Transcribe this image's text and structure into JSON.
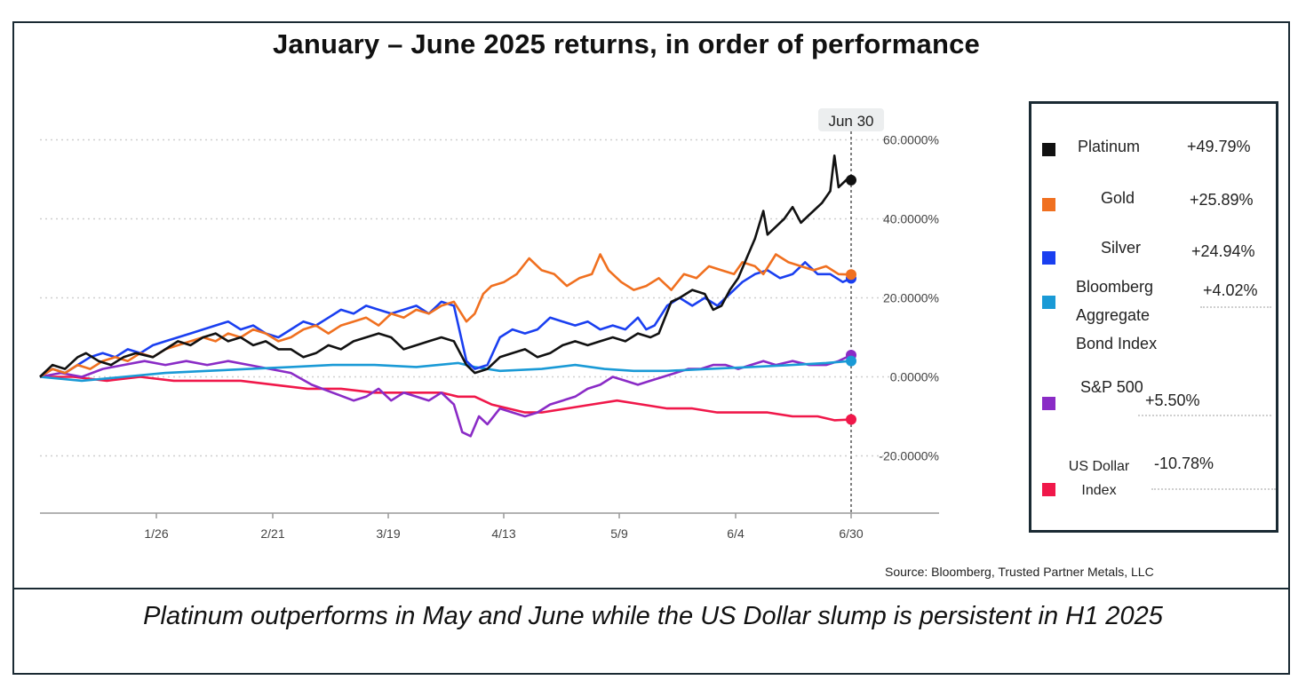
{
  "title": "January – June 2025 returns, in order of performance",
  "source": "Source: Bloomberg, Trusted Partner Metals, LLC",
  "caption": "Platinum outperforms in May and June while the US Dollar slump is persistent in H1 2025",
  "chart_data": {
    "type": "line",
    "title": "January – June 2025 returns, in order of performance",
    "xlabel": "",
    "ylabel": "",
    "x_tick_labels": [
      "1/26",
      "2/21",
      "3/19",
      "4/13",
      "5/9",
      "6/4",
      "6/30"
    ],
    "x_tick_days": [
      25,
      51,
      77,
      102,
      128,
      154,
      180
    ],
    "x_range_days": [
      0,
      180
    ],
    "y_tick_labels": [
      "60.0000%",
      "40.0000%",
      "20.0000%",
      "0.0000%",
      "-20.0000%"
    ],
    "y_ticks": [
      60,
      40,
      20,
      0,
      -20
    ],
    "ylim": [
      -35,
      63
    ],
    "hover_label": "Jun 30",
    "grid": "horizontal dotted",
    "legend_position": "right",
    "series": [
      {
        "name": "Platinum",
        "value_label": "+49.79%",
        "color": "#111111",
        "points": [
          [
            0,
            0
          ],
          [
            3,
            3
          ],
          [
            6,
            2
          ],
          [
            9,
            5
          ],
          [
            11,
            6
          ],
          [
            14,
            4
          ],
          [
            17,
            3
          ],
          [
            20,
            5
          ],
          [
            23,
            6
          ],
          [
            27,
            5
          ],
          [
            30,
            7
          ],
          [
            33,
            9
          ],
          [
            36,
            8
          ],
          [
            39,
            10
          ],
          [
            42,
            11
          ],
          [
            45,
            9
          ],
          [
            48,
            10
          ],
          [
            51,
            8
          ],
          [
            54,
            9
          ],
          [
            57,
            7
          ],
          [
            60,
            7
          ],
          [
            63,
            5
          ],
          [
            66,
            6
          ],
          [
            69,
            8
          ],
          [
            72,
            7
          ],
          [
            75,
            9
          ],
          [
            78,
            10
          ],
          [
            81,
            11
          ],
          [
            84,
            10
          ],
          [
            87,
            7
          ],
          [
            90,
            8
          ],
          [
            93,
            9
          ],
          [
            96,
            10
          ],
          [
            99,
            9
          ],
          [
            102,
            3
          ],
          [
            104,
            1
          ],
          [
            107,
            2
          ],
          [
            110,
            5
          ],
          [
            113,
            6
          ],
          [
            116,
            7
          ],
          [
            119,
            5
          ],
          [
            122,
            6
          ],
          [
            125,
            8
          ],
          [
            128,
            9
          ],
          [
            131,
            8
          ],
          [
            134,
            9
          ],
          [
            137,
            10
          ],
          [
            140,
            9
          ],
          [
            143,
            11
          ],
          [
            146,
            10
          ],
          [
            148,
            11
          ],
          [
            151,
            19
          ],
          [
            153,
            20
          ],
          [
            156,
            22
          ],
          [
            159,
            21
          ],
          [
            161,
            17
          ],
          [
            163,
            18
          ],
          [
            165,
            22
          ],
          [
            167,
            25
          ],
          [
            169,
            30
          ],
          [
            171,
            35
          ],
          [
            173,
            42
          ],
          [
            174,
            36
          ],
          [
            176,
            38
          ],
          [
            178,
            40
          ],
          [
            180,
            43
          ],
          [
            182,
            39
          ],
          [
            184,
            41
          ],
          [
            187,
            44
          ],
          [
            189,
            47
          ],
          [
            190,
            56
          ],
          [
            191,
            48
          ],
          [
            193,
            50
          ],
          [
            194,
            49.79
          ]
        ]
      },
      {
        "name": "Gold",
        "value_label": "+25.89%",
        "color": "#f07020",
        "points": [
          [
            0,
            0
          ],
          [
            3,
            2
          ],
          [
            6,
            1
          ],
          [
            9,
            3
          ],
          [
            12,
            2
          ],
          [
            15,
            4
          ],
          [
            18,
            5
          ],
          [
            21,
            4
          ],
          [
            24,
            6
          ],
          [
            27,
            5
          ],
          [
            30,
            7
          ],
          [
            33,
            8
          ],
          [
            36,
            9
          ],
          [
            39,
            10
          ],
          [
            42,
            9
          ],
          [
            45,
            11
          ],
          [
            48,
            10
          ],
          [
            51,
            12
          ],
          [
            54,
            11
          ],
          [
            57,
            9
          ],
          [
            60,
            10
          ],
          [
            63,
            12
          ],
          [
            66,
            13
          ],
          [
            69,
            11
          ],
          [
            72,
            13
          ],
          [
            75,
            14
          ],
          [
            78,
            15
          ],
          [
            81,
            13
          ],
          [
            84,
            16
          ],
          [
            87,
            15
          ],
          [
            90,
            17
          ],
          [
            93,
            16
          ],
          [
            96,
            18
          ],
          [
            99,
            19
          ],
          [
            102,
            14
          ],
          [
            104,
            16
          ],
          [
            106,
            21
          ],
          [
            108,
            23
          ],
          [
            111,
            24
          ],
          [
            114,
            26
          ],
          [
            117,
            30
          ],
          [
            120,
            27
          ],
          [
            123,
            26
          ],
          [
            126,
            23
          ],
          [
            129,
            25
          ],
          [
            132,
            26
          ],
          [
            134,
            31
          ],
          [
            136,
            27
          ],
          [
            139,
            24
          ],
          [
            142,
            22
          ],
          [
            145,
            23
          ],
          [
            148,
            25
          ],
          [
            151,
            22
          ],
          [
            154,
            26
          ],
          [
            157,
            25
          ],
          [
            160,
            28
          ],
          [
            163,
            27
          ],
          [
            166,
            26
          ],
          [
            168,
            29
          ],
          [
            171,
            28
          ],
          [
            173,
            26
          ],
          [
            176,
            31
          ],
          [
            179,
            29
          ],
          [
            182,
            28
          ],
          [
            185,
            27
          ],
          [
            188,
            28
          ],
          [
            191,
            26
          ],
          [
            194,
            25.89
          ]
        ]
      },
      {
        "name": "Silver",
        "value_label": "+24.94%",
        "color": "#1a3ff0",
        "points": [
          [
            0,
            0
          ],
          [
            3,
            2
          ],
          [
            6,
            1
          ],
          [
            9,
            3
          ],
          [
            12,
            5
          ],
          [
            15,
            6
          ],
          [
            18,
            5
          ],
          [
            21,
            7
          ],
          [
            24,
            6
          ],
          [
            27,
            8
          ],
          [
            30,
            9
          ],
          [
            33,
            10
          ],
          [
            36,
            11
          ],
          [
            39,
            12
          ],
          [
            42,
            13
          ],
          [
            45,
            14
          ],
          [
            48,
            12
          ],
          [
            51,
            13
          ],
          [
            54,
            11
          ],
          [
            57,
            10
          ],
          [
            60,
            12
          ],
          [
            63,
            14
          ],
          [
            66,
            13
          ],
          [
            69,
            15
          ],
          [
            72,
            17
          ],
          [
            75,
            16
          ],
          [
            78,
            18
          ],
          [
            81,
            17
          ],
          [
            84,
            16
          ],
          [
            87,
            17
          ],
          [
            90,
            18
          ],
          [
            93,
            16
          ],
          [
            96,
            19
          ],
          [
            99,
            18
          ],
          [
            102,
            4
          ],
          [
            104,
            2
          ],
          [
            107,
            3
          ],
          [
            110,
            10
          ],
          [
            113,
            12
          ],
          [
            116,
            11
          ],
          [
            119,
            12
          ],
          [
            122,
            15
          ],
          [
            125,
            14
          ],
          [
            128,
            13
          ],
          [
            131,
            14
          ],
          [
            134,
            12
          ],
          [
            137,
            13
          ],
          [
            140,
            12
          ],
          [
            143,
            15
          ],
          [
            145,
            12
          ],
          [
            147,
            13
          ],
          [
            150,
            18
          ],
          [
            153,
            20
          ],
          [
            156,
            18
          ],
          [
            159,
            20
          ],
          [
            162,
            18
          ],
          [
            165,
            21
          ],
          [
            168,
            24
          ],
          [
            171,
            26
          ],
          [
            174,
            27
          ],
          [
            177,
            25
          ],
          [
            180,
            26
          ],
          [
            183,
            29
          ],
          [
            186,
            26
          ],
          [
            189,
            26
          ],
          [
            192,
            24
          ],
          [
            194,
            24.94
          ]
        ]
      },
      {
        "name": "Bloomberg Aggregate Bond Index",
        "value_label": "+4.02%",
        "color": "#1a9ad6",
        "points": [
          [
            0,
            0
          ],
          [
            10,
            -1
          ],
          [
            20,
            0
          ],
          [
            30,
            1
          ],
          [
            40,
            1.5
          ],
          [
            50,
            2
          ],
          [
            60,
            2.5
          ],
          [
            70,
            3
          ],
          [
            80,
            3
          ],
          [
            90,
            2.5
          ],
          [
            100,
            3.5
          ],
          [
            104,
            2.5
          ],
          [
            110,
            1.5
          ],
          [
            120,
            2
          ],
          [
            128,
            3
          ],
          [
            135,
            2
          ],
          [
            142,
            1.5
          ],
          [
            150,
            1.5
          ],
          [
            160,
            2
          ],
          [
            170,
            2.5
          ],
          [
            180,
            3
          ],
          [
            188,
            3.5
          ],
          [
            194,
            4.02
          ]
        ]
      },
      {
        "name": "S&P 500",
        "value_label": "+5.50%",
        "color": "#8a2bc6",
        "points": [
          [
            0,
            0
          ],
          [
            5,
            1
          ],
          [
            10,
            0
          ],
          [
            15,
            2
          ],
          [
            20,
            3
          ],
          [
            25,
            4
          ],
          [
            30,
            3
          ],
          [
            35,
            4
          ],
          [
            40,
            3
          ],
          [
            45,
            4
          ],
          [
            50,
            3
          ],
          [
            55,
            2
          ],
          [
            60,
            1
          ],
          [
            65,
            -2
          ],
          [
            70,
            -4
          ],
          [
            75,
            -6
          ],
          [
            78,
            -5
          ],
          [
            81,
            -3
          ],
          [
            84,
            -6
          ],
          [
            87,
            -4
          ],
          [
            90,
            -5
          ],
          [
            93,
            -6
          ],
          [
            96,
            -4
          ],
          [
            99,
            -7
          ],
          [
            101,
            -14
          ],
          [
            103,
            -15
          ],
          [
            105,
            -10
          ],
          [
            107,
            -12
          ],
          [
            110,
            -8
          ],
          [
            113,
            -9
          ],
          [
            116,
            -10
          ],
          [
            119,
            -9
          ],
          [
            122,
            -7
          ],
          [
            125,
            -6
          ],
          [
            128,
            -5
          ],
          [
            131,
            -3
          ],
          [
            134,
            -2
          ],
          [
            137,
            0
          ],
          [
            140,
            -1
          ],
          [
            143,
            -2
          ],
          [
            146,
            -1
          ],
          [
            149,
            0
          ],
          [
            152,
            1
          ],
          [
            155,
            2
          ],
          [
            158,
            2
          ],
          [
            161,
            3
          ],
          [
            164,
            3
          ],
          [
            167,
            2
          ],
          [
            170,
            3
          ],
          [
            173,
            4
          ],
          [
            176,
            3
          ],
          [
            180,
            4
          ],
          [
            184,
            3
          ],
          [
            188,
            3
          ],
          [
            191,
            4
          ],
          [
            194,
            5.5
          ]
        ]
      },
      {
        "name": "US Dollar Index",
        "value_label": "-10.78%",
        "color": "#f0184a",
        "points": [
          [
            0,
            0
          ],
          [
            8,
            0
          ],
          [
            16,
            -1
          ],
          [
            24,
            0
          ],
          [
            32,
            -1
          ],
          [
            40,
            -1
          ],
          [
            48,
            -1
          ],
          [
            56,
            -2
          ],
          [
            64,
            -3
          ],
          [
            72,
            -3
          ],
          [
            80,
            -4
          ],
          [
            88,
            -4
          ],
          [
            96,
            -4
          ],
          [
            100,
            -5
          ],
          [
            104,
            -5
          ],
          [
            108,
            -7
          ],
          [
            112,
            -8
          ],
          [
            116,
            -9
          ],
          [
            120,
            -9
          ],
          [
            126,
            -8
          ],
          [
            132,
            -7
          ],
          [
            138,
            -6
          ],
          [
            144,
            -7
          ],
          [
            150,
            -8
          ],
          [
            156,
            -8
          ],
          [
            162,
            -9
          ],
          [
            168,
            -9
          ],
          [
            174,
            -9
          ],
          [
            180,
            -10
          ],
          [
            186,
            -10
          ],
          [
            190,
            -11
          ],
          [
            194,
            -10.78
          ]
        ]
      }
    ]
  }
}
